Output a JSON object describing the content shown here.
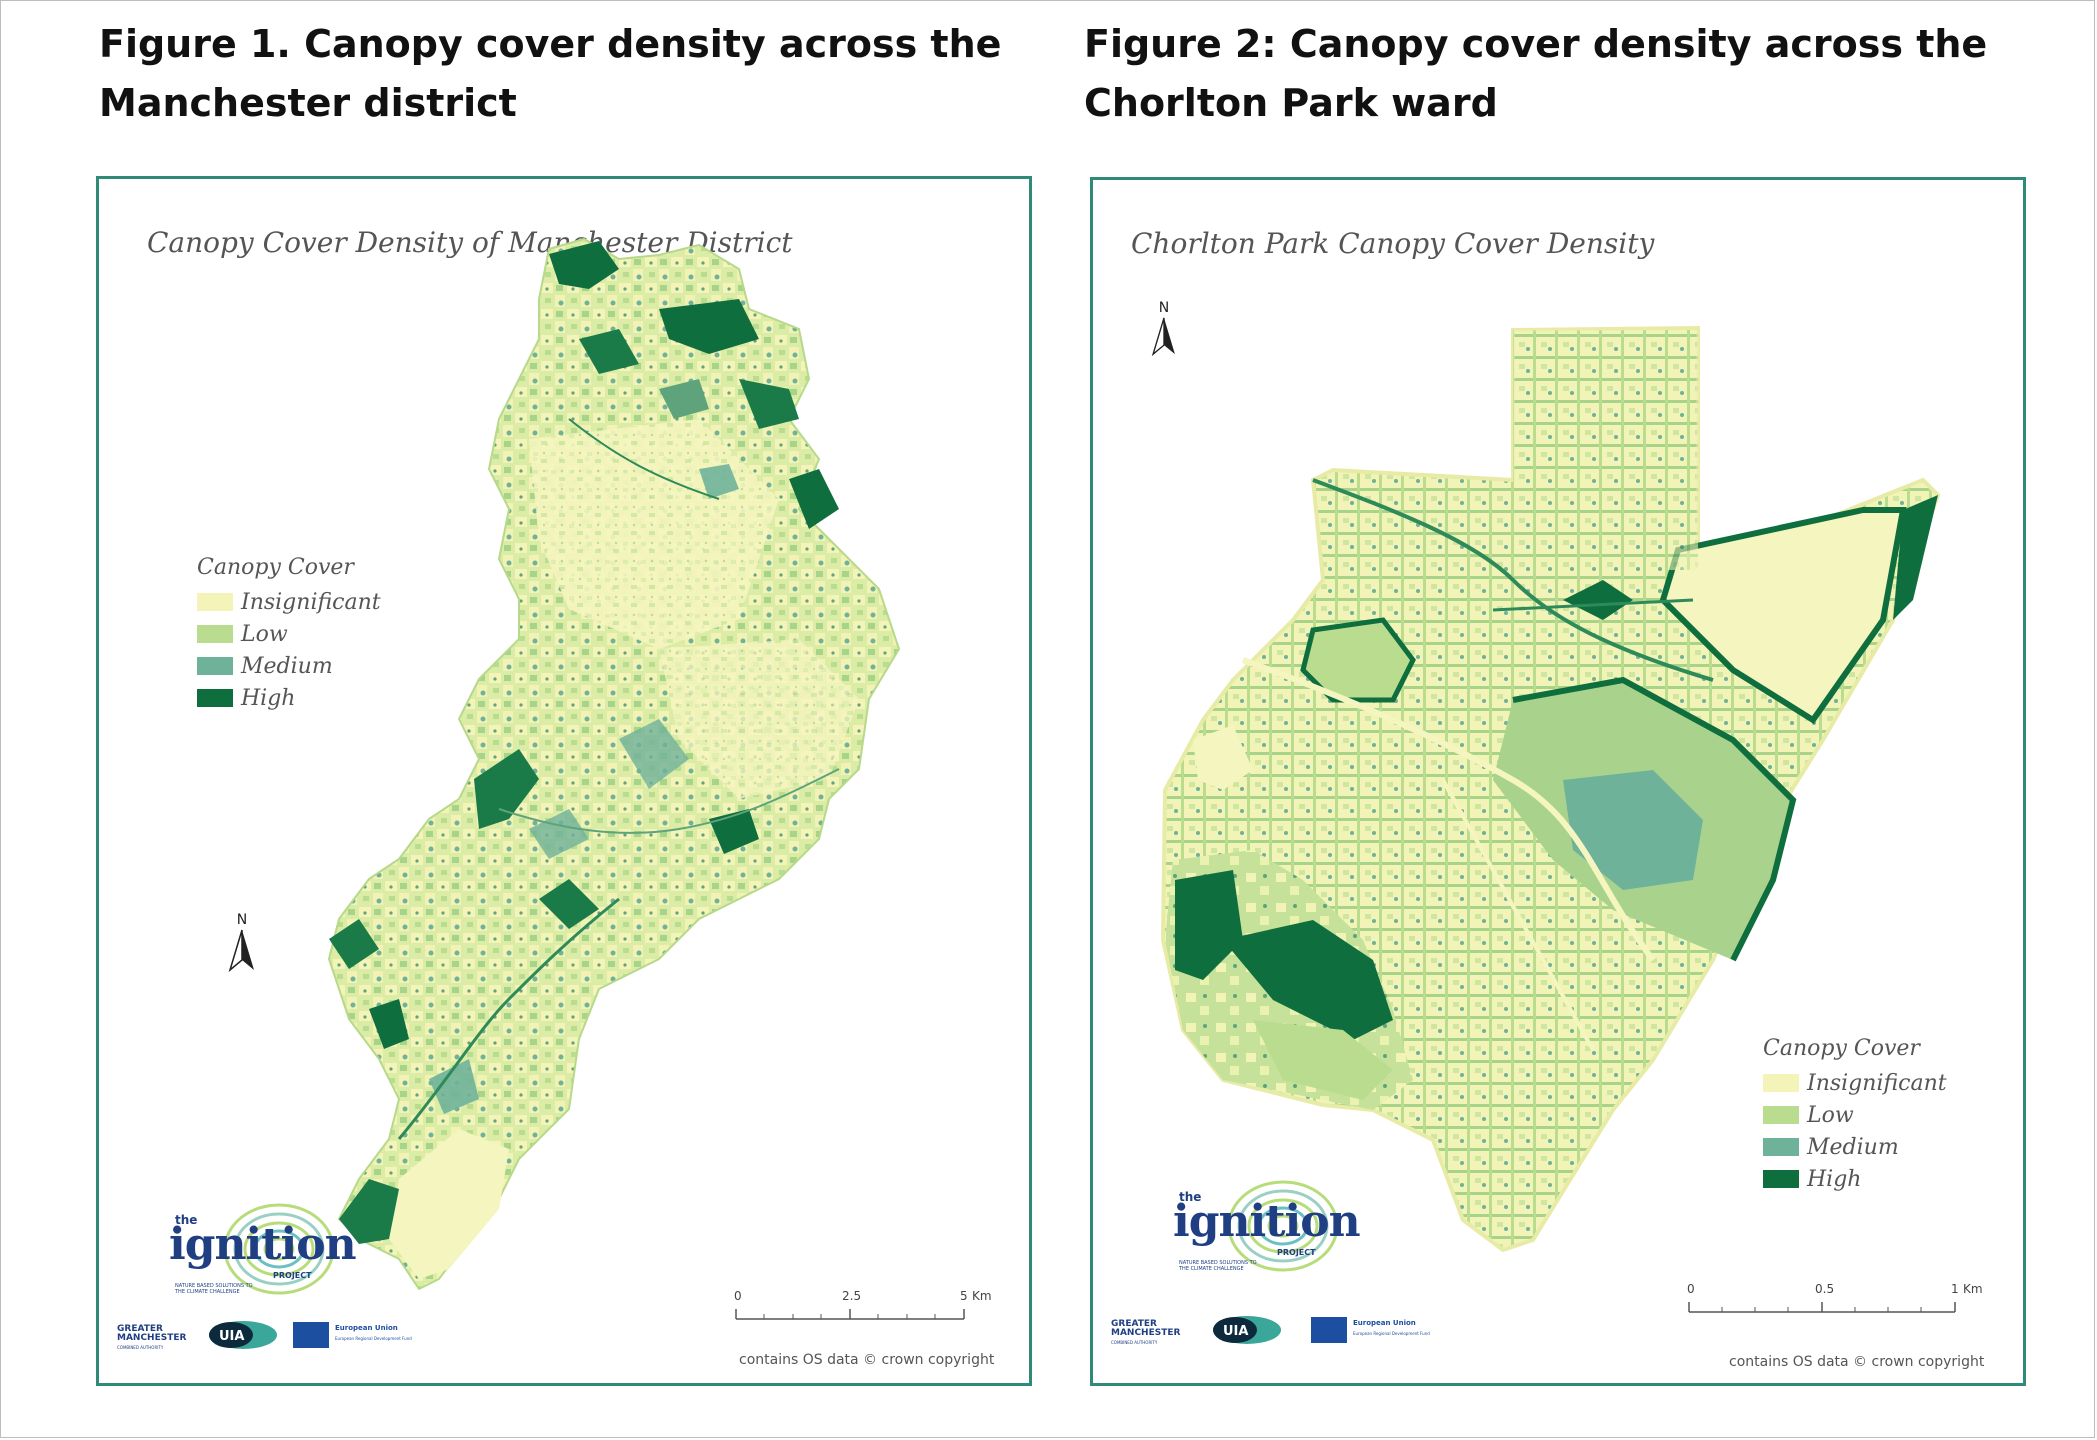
{
  "figure1": {
    "heading_line1": "Figure 1. Canopy cover density across the",
    "heading_line2": "Manchester district",
    "map_title": "Canopy Cover Density of Manchester District",
    "legend": {
      "title": "Canopy Cover",
      "items": [
        {
          "label": "Insignificant",
          "color": "#f4f4b8"
        },
        {
          "label": "Low",
          "color": "#b9dc8e"
        },
        {
          "label": "Medium",
          "color": "#6fb29a"
        },
        {
          "label": "High",
          "color": "#0f6e3e"
        }
      ]
    },
    "north_label": "N",
    "scale": {
      "ticks": [
        "0",
        "2.5",
        "5"
      ],
      "unit": "Km"
    },
    "credit": "contains OS data © crown copyright"
  },
  "figure2": {
    "heading_line1": "Figure 2: Canopy cover density across the",
    "heading_line2": "Chorlton Park ward",
    "map_title": "Chorlton Park Canopy Cover Density",
    "legend": {
      "title": "Canopy Cover",
      "items": [
        {
          "label": "Insignificant",
          "color": "#f4f4b8"
        },
        {
          "label": "Low",
          "color": "#b9dc8e"
        },
        {
          "label": "Medium",
          "color": "#6fb29a"
        },
        {
          "label": "High",
          "color": "#0f6e3e"
        }
      ]
    },
    "north_label": "N",
    "scale": {
      "ticks": [
        "0",
        "0.5",
        "1"
      ],
      "unit": "Km"
    },
    "credit": "contains OS data © crown copyright"
  },
  "logos": {
    "ignition_the": "the",
    "ignition_word": "ignition",
    "ignition_project": "PROJECT",
    "ignition_tagline": "NATURE BASED SOLUTIONS TO THE CLIMATE CHALLENGE",
    "gm_line1": "GREATER",
    "gm_line2": "MANCHESTER",
    "gm_sub": "COMBINED AUTHORITY",
    "uia": "UIA",
    "eu_title": "European Union",
    "eu_sub": "European Regional Development Fund"
  }
}
